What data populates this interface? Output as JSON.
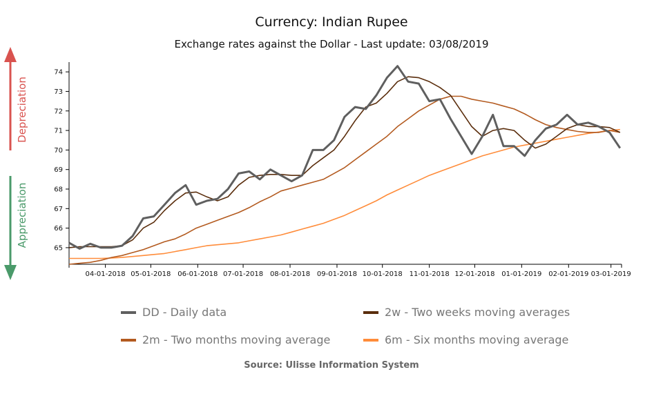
{
  "title": "Currency: Indian Rupee",
  "subtitle": "Exchange rates against the Dollar - Last update: 03/08/2019",
  "side_labels": {
    "up": "Depreciation",
    "down": "Appreciation",
    "up_color": "#d9534f",
    "down_color": "#4a9a6a"
  },
  "source": "Source: Ulisse Information System",
  "chart_data": {
    "type": "line",
    "ylim": [
      64.15,
      74.5
    ],
    "yticks": [
      65,
      66,
      67,
      68,
      69,
      70,
      71,
      72,
      73,
      74
    ],
    "xlim": [
      "2018-03-08",
      "2019-03-08"
    ],
    "xticks": [
      {
        "date": "2018-04-01",
        "label": "04-01-2018"
      },
      {
        "date": "2018-05-01",
        "label": "05-01-2018"
      },
      {
        "date": "2018-06-01",
        "label": "06-01-2018"
      },
      {
        "date": "2018-07-01",
        "label": "07-01-2018"
      },
      {
        "date": "2018-08-01",
        "label": "08-01-2018"
      },
      {
        "date": "2018-09-01",
        "label": "09-01-2018"
      },
      {
        "date": "2018-10-01",
        "label": "10-01-2018"
      },
      {
        "date": "2018-11-01",
        "label": "11-01-2018"
      },
      {
        "date": "2018-12-01",
        "label": "12-01-2018"
      },
      {
        "date": "2019-01-01",
        "label": "01-01-2019"
      },
      {
        "date": "2019-02-01",
        "label": "02-01-2019"
      },
      {
        "date": "2019-03-01",
        "label": "03-01-2019"
      }
    ],
    "x": [
      "2018-03-08",
      "2018-03-15",
      "2018-03-22",
      "2018-03-29",
      "2018-04-05",
      "2018-04-12",
      "2018-04-19",
      "2018-04-26",
      "2018-05-03",
      "2018-05-10",
      "2018-05-17",
      "2018-05-24",
      "2018-05-31",
      "2018-06-07",
      "2018-06-14",
      "2018-06-21",
      "2018-06-28",
      "2018-07-05",
      "2018-07-12",
      "2018-07-19",
      "2018-07-26",
      "2018-08-02",
      "2018-08-09",
      "2018-08-16",
      "2018-08-23",
      "2018-08-30",
      "2018-09-06",
      "2018-09-13",
      "2018-09-20",
      "2018-09-27",
      "2018-10-04",
      "2018-10-11",
      "2018-10-18",
      "2018-10-25",
      "2018-11-01",
      "2018-11-08",
      "2018-11-15",
      "2018-11-22",
      "2018-11-29",
      "2018-12-06",
      "2018-12-13",
      "2018-12-20",
      "2018-12-27",
      "2019-01-03",
      "2019-01-10",
      "2019-01-17",
      "2019-01-24",
      "2019-01-31",
      "2019-02-07",
      "2019-02-14",
      "2019-02-21",
      "2019-02-28",
      "2019-03-07"
    ],
    "series": [
      {
        "name": "DD - Daily data",
        "color": "#5f5f5f",
        "width": 3,
        "values": [
          65.25,
          64.95,
          65.2,
          65.0,
          65.0,
          65.1,
          65.6,
          66.5,
          66.6,
          67.2,
          67.8,
          68.2,
          67.2,
          67.4,
          67.5,
          68.0,
          68.8,
          68.9,
          68.5,
          69.0,
          68.7,
          68.4,
          68.7,
          70.0,
          70.0,
          70.5,
          71.7,
          72.2,
          72.1,
          72.8,
          73.7,
          74.3,
          73.5,
          73.4,
          72.5,
          72.6,
          71.6,
          70.7,
          69.8,
          70.7,
          71.8,
          70.2,
          70.2,
          69.7,
          70.5,
          71.1,
          71.3,
          71.8,
          71.3,
          71.4,
          71.2,
          70.9,
          70.1
        ]
      },
      {
        "name": "2w - Two weeks moving averages",
        "color": "#5a2d0c",
        "width": 1.6,
        "values": [
          65.0,
          65.05,
          65.05,
          65.05,
          65.05,
          65.1,
          65.4,
          66.0,
          66.3,
          66.9,
          67.4,
          67.8,
          67.85,
          67.6,
          67.4,
          67.6,
          68.2,
          68.6,
          68.7,
          68.75,
          68.75,
          68.7,
          68.7,
          69.2,
          69.6,
          70.0,
          70.7,
          71.5,
          72.2,
          72.4,
          72.9,
          73.5,
          73.75,
          73.7,
          73.5,
          73.2,
          72.8,
          72.0,
          71.2,
          70.7,
          71.0,
          71.1,
          71.0,
          70.5,
          70.1,
          70.3,
          70.7,
          71.1,
          71.3,
          71.2,
          71.2,
          71.15,
          70.9
        ]
      },
      {
        "name": "2m - Two months moving average",
        "color": "#b35a1f",
        "width": 1.6,
        "values": [
          64.15,
          64.2,
          64.25,
          64.35,
          64.5,
          64.6,
          64.75,
          64.9,
          65.1,
          65.3,
          65.45,
          65.7,
          66.0,
          66.2,
          66.4,
          66.6,
          66.8,
          67.05,
          67.35,
          67.6,
          67.9,
          68.05,
          68.2,
          68.35,
          68.5,
          68.8,
          69.1,
          69.5,
          69.9,
          70.3,
          70.7,
          71.2,
          71.6,
          72.0,
          72.3,
          72.6,
          72.75,
          72.75,
          72.6,
          72.5,
          72.4,
          72.25,
          72.1,
          71.85,
          71.55,
          71.3,
          71.15,
          71.05,
          70.95,
          70.9,
          70.9,
          71.0,
          70.9
        ]
      },
      {
        "name": "6m - Six months moving average",
        "color": "#ff8c3a",
        "width": 1.6,
        "values": [
          64.45,
          64.45,
          64.45,
          64.45,
          64.47,
          64.5,
          64.55,
          64.6,
          64.65,
          64.7,
          64.8,
          64.9,
          65.0,
          65.1,
          65.15,
          65.2,
          65.25,
          65.35,
          65.45,
          65.55,
          65.65,
          65.8,
          65.95,
          66.1,
          66.25,
          66.45,
          66.65,
          66.9,
          67.15,
          67.4,
          67.7,
          67.95,
          68.2,
          68.45,
          68.7,
          68.9,
          69.1,
          69.3,
          69.5,
          69.7,
          69.85,
          70.0,
          70.15,
          70.25,
          70.35,
          70.45,
          70.55,
          70.65,
          70.75,
          70.85,
          70.92,
          71.0,
          71.05
        ]
      }
    ]
  }
}
